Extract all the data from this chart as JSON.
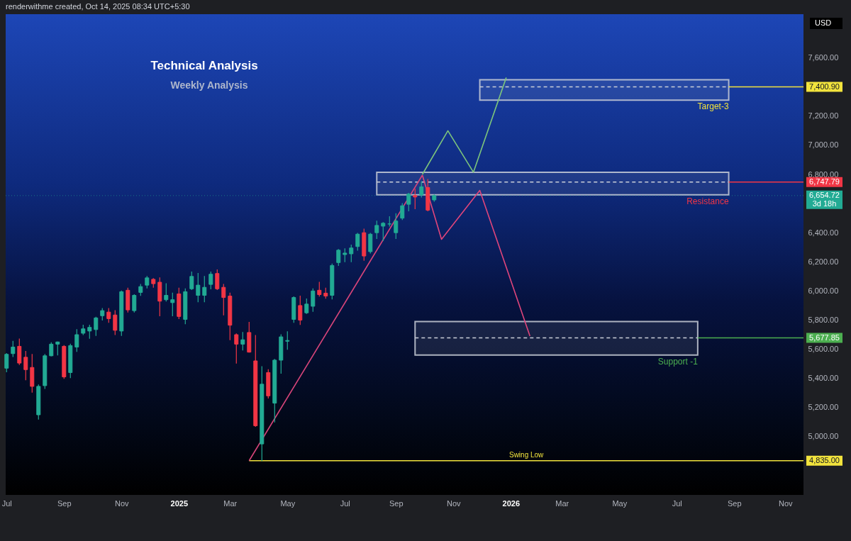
{
  "chart_data": {
    "type": "candlestick",
    "title": "Technical Analysis",
    "subtitle": "Weekly Analysis",
    "annotations": [
      "renderwithme created, Oct 14, 2025 08:34 UTC+5:30",
      "USD"
    ],
    "x": [
      "2024-07-01",
      "2024-07-08",
      "2024-07-15",
      "2024-07-22",
      "2024-07-29",
      "2024-08-05",
      "2024-08-12",
      "2024-08-19",
      "2024-08-26",
      "2024-09-02",
      "2024-09-09",
      "2024-09-16",
      "2024-09-23",
      "2024-09-30",
      "2024-10-07",
      "2024-10-14",
      "2024-10-21",
      "2024-10-28",
      "2024-11-04",
      "2024-11-11",
      "2024-11-18",
      "2024-11-25",
      "2024-12-02",
      "2024-12-09",
      "2024-12-16",
      "2024-12-23",
      "2024-12-30",
      "2025-01-06",
      "2025-01-13",
      "2025-01-20",
      "2025-01-27",
      "2025-02-03",
      "2025-02-10",
      "2025-02-17",
      "2025-02-24",
      "2025-03-03",
      "2025-03-10",
      "2025-03-17",
      "2025-03-24",
      "2025-03-31",
      "2025-04-07",
      "2025-04-14",
      "2025-04-21",
      "2025-04-28",
      "2025-05-05",
      "2025-05-12",
      "2025-05-19",
      "2025-05-26",
      "2025-06-02",
      "2025-06-09",
      "2025-06-16",
      "2025-06-23",
      "2025-06-30",
      "2025-07-07",
      "2025-07-14",
      "2025-07-21",
      "2025-07-28",
      "2025-08-04",
      "2025-08-11",
      "2025-08-18",
      "2025-08-25",
      "2025-09-01",
      "2025-09-08",
      "2025-09-15",
      "2025-09-22",
      "2025-09-29",
      "2025-10-06",
      "2025-10-13"
    ],
    "ohlc": [
      [
        5470,
        5570,
        5445,
        5565
      ],
      [
        5570,
        5655,
        5550,
        5615
      ],
      [
        5620,
        5670,
        5495,
        5505
      ],
      [
        5545,
        5585,
        5390,
        5460
      ],
      [
        5475,
        5565,
        5305,
        5345
      ],
      [
        5150,
        5355,
        5120,
        5345
      ],
      [
        5350,
        5565,
        5330,
        5555
      ],
      [
        5555,
        5645,
        5555,
        5635
      ],
      [
        5635,
        5650,
        5560,
        5650
      ],
      [
        5620,
        5625,
        5400,
        5410
      ],
      [
        5440,
        5635,
        5405,
        5625
      ],
      [
        5615,
        5735,
        5585,
        5700
      ],
      [
        5710,
        5765,
        5700,
        5740
      ],
      [
        5725,
        5765,
        5675,
        5750
      ],
      [
        5735,
        5820,
        5695,
        5815
      ],
      [
        5830,
        5880,
        5800,
        5865
      ],
      [
        5855,
        5880,
        5785,
        5810
      ],
      [
        5835,
        5865,
        5700,
        5730
      ],
      [
        5725,
        6000,
        5695,
        5995
      ],
      [
        6005,
        6020,
        5855,
        5870
      ],
      [
        5865,
        5975,
        5855,
        5970
      ],
      [
        5990,
        6045,
        5970,
        6030
      ],
      [
        6040,
        6100,
        6020,
        6090
      ],
      [
        6080,
        6085,
        6025,
        6050
      ],
      [
        6060,
        6090,
        5830,
        5930
      ],
      [
        5940,
        6050,
        5930,
        5970
      ],
      [
        5920,
        5985,
        5830,
        5940
      ],
      [
        5980,
        6020,
        5810,
        5825
      ],
      [
        5805,
        6015,
        5775,
        5995
      ],
      [
        6015,
        6130,
        6010,
        6100
      ],
      [
        5970,
        6120,
        5925,
        6040
      ],
      [
        5970,
        6100,
        5925,
        6025
      ],
      [
        6045,
        6130,
        6015,
        6115
      ],
      [
        6120,
        6145,
        6010,
        6015
      ],
      [
        6025,
        6045,
        5835,
        5955
      ],
      [
        5965,
        5985,
        5665,
        5765
      ],
      [
        5700,
        5705,
        5505,
        5635
      ],
      [
        5635,
        5715,
        5595,
        5665
      ],
      [
        5715,
        5785,
        5580,
        5580
      ],
      [
        5520,
        5695,
        5070,
        5075
      ],
      [
        4950,
        5480,
        4835,
        5360
      ],
      [
        5440,
        5460,
        5265,
        5280
      ],
      [
        5230,
        5530,
        5100,
        5525
      ],
      [
        5525,
        5700,
        5435,
        5685
      ],
      [
        5655,
        5720,
        5600,
        5660
      ],
      [
        5805,
        5960,
        5785,
        5955
      ],
      [
        5900,
        5965,
        5770,
        5800
      ],
      [
        5850,
        5945,
        5845,
        5910
      ],
      [
        5895,
        6015,
        5860,
        6000
      ],
      [
        6005,
        6060,
        5965,
        5975
      ],
      [
        5985,
        6020,
        5950,
        5965
      ],
      [
        5970,
        6185,
        5945,
        6175
      ],
      [
        6195,
        6285,
        6175,
        6280
      ],
      [
        6250,
        6290,
        6200,
        6260
      ],
      [
        6255,
        6315,
        6200,
        6295
      ],
      [
        6305,
        6395,
        6280,
        6390
      ],
      [
        6400,
        6425,
        6210,
        6240
      ],
      [
        6270,
        6395,
        6260,
        6390
      ],
      [
        6400,
        6480,
        6360,
        6450
      ],
      [
        6445,
        6470,
        6345,
        6465
      ],
      [
        6460,
        6510,
        6445,
        6460
      ],
      [
        6400,
        6530,
        6360,
        6480
      ],
      [
        6500,
        6600,
        6490,
        6585
      ],
      [
        6595,
        6670,
        6550,
        6665
      ],
      [
        6655,
        6700,
        6565,
        6645
      ],
      [
        6660,
        6750,
        6645,
        6715
      ],
      [
        6710,
        6765,
        6550,
        6555
      ],
      [
        6625,
        6660,
        6615,
        6654.72
      ]
    ],
    "colors": [
      "#22ab94",
      "#22ab94",
      "#f23645",
      "#f23645",
      "#f23645",
      "#22ab94",
      "#22ab94",
      "#22ab94",
      "#22ab94",
      "#f23645",
      "#22ab94",
      "#22ab94",
      "#22ab94",
      "#22ab94",
      "#22ab94",
      "#22ab94",
      "#f23645",
      "#f23645",
      "#22ab94",
      "#f23645",
      "#22ab94",
      "#22ab94",
      "#22ab94",
      "#f23645",
      "#f23645",
      "#22ab94",
      "#22ab94",
      "#f23645",
      "#22ab94",
      "#22ab94",
      "#22ab94",
      "#22ab94",
      "#22ab94",
      "#f23645",
      "#f23645",
      "#f23645",
      "#f23645",
      "#22ab94",
      "#f23645",
      "#f23645",
      "#22ab94",
      "#f23645",
      "#22ab94",
      "#22ab94",
      "#22ab94",
      "#22ab94",
      "#f23645",
      "#22ab94",
      "#22ab94",
      "#f23645",
      "#f23645",
      "#22ab94",
      "#22ab94",
      "#22ab94",
      "#22ab94",
      "#22ab94",
      "#f23645",
      "#22ab94",
      "#22ab94",
      "#22ab94",
      "#22ab94",
      "#22ab94",
      "#22ab94",
      "#22ab94",
      "#f23645",
      "#22ab94",
      "#f23645",
      "#22ab94"
    ],
    "series": [
      {
        "type": "line",
        "x": [
          "2025-12-02",
          "2026-09-01"
        ],
        "values": [
          7400.9,
          7400.9
        ],
        "lower": [
          7310,
          7310
        ],
        "upper": [
          7450,
          7450
        ],
        "color": "#c9ced8",
        "line_style": "dashed"
      },
      {
        "type": "line",
        "name": "Target-3",
        "x": [
          "2026-09-01",
          "2026-11-22"
        ],
        "values": [
          7400.9,
          7400.9
        ],
        "color": "#f2e33d",
        "value_labels": [
          null,
          "7,400.90"
        ]
      },
      {
        "type": "line",
        "x": [
          "2025-08-11",
          "2026-09-01"
        ],
        "values": [
          6747.79,
          6747.79
        ],
        "lower": [
          6660,
          6660
        ],
        "upper": [
          6815,
          6815
        ],
        "color": "#c9ced8",
        "line_style": "dashed"
      },
      {
        "type": "line",
        "name": "Resistance",
        "x": [
          "2026-09-01",
          "2026-11-22"
        ],
        "values": [
          6747.79,
          6747.79
        ],
        "color": "#f23645",
        "value_labels": [
          null,
          "6,747.79"
        ]
      },
      {
        "type": "line",
        "x": [
          "2025-09-22",
          "2026-07-29"
        ],
        "values": [
          5677.85,
          5677.85
        ],
        "lower": [
          5560,
          5560
        ],
        "upper": [
          5790,
          5790
        ],
        "color": "#c9ced8",
        "line_style": "dashed"
      },
      {
        "type": "line",
        "name": "Support -1",
        "x": [
          "2026-07-29",
          "2026-11-22"
        ],
        "values": [
          5677.85,
          5677.85
        ],
        "color": "#4caf50",
        "value_labels": [
          null,
          "5,677.85"
        ]
      },
      {
        "type": "line",
        "name": "Swing Low",
        "x": [
          "2025-03-24",
          "2026-11-22"
        ],
        "values": [
          4835,
          4835
        ],
        "color": "#f2e33d",
        "value_labels": [
          null,
          "4,835.00"
        ]
      },
      {
        "type": "line",
        "x": [
          "2025-03-24",
          "2025-09-30"
        ],
        "values": [
          4835,
          6795
        ],
        "color": "#d8457a"
      },
      {
        "type": "line",
        "x": [
          "2025-09-30",
          "2025-10-21",
          "2025-12-02",
          "2026-01-26"
        ],
        "values": [
          6795,
          6355,
          6690,
          5690
        ],
        "color": "#e0457b"
      },
      {
        "type": "line",
        "x": [
          "2025-09-30",
          "2025-10-28",
          "2025-11-25",
          "2025-12-31"
        ],
        "values": [
          6800,
          7100,
          6815,
          7465
        ],
        "color": "#7cc47c"
      }
    ],
    "ref_lines": [
      {
        "axis": "y",
        "value": 6654.72,
        "label": "6,654.72\n3d 18h",
        "color": "#22ab94",
        "line_style": "dotted"
      }
    ],
    "xlim": [
      "2024-06-30",
      "2026-11-22"
    ],
    "xticks": [
      {
        "value": "2024-07-01",
        "label": "Jul"
      },
      {
        "value": "2024-09-02",
        "label": "Sep"
      },
      {
        "value": "2024-11-04",
        "label": "Nov"
      },
      {
        "value": "2025-01-06",
        "label": "2025"
      },
      {
        "value": "2025-03-03",
        "label": "Mar"
      },
      {
        "value": "2025-05-05",
        "label": "May"
      },
      {
        "value": "2025-07-07",
        "label": "Jul"
      },
      {
        "value": "2025-09-01",
        "label": "Sep"
      },
      {
        "value": "2025-11-03",
        "label": "Nov"
      },
      {
        "value": "2026-01-05",
        "label": "2026"
      },
      {
        "value": "2026-03-02",
        "label": "Mar"
      },
      {
        "value": "2026-05-04",
        "label": "May"
      },
      {
        "value": "2026-07-06",
        "label": "Jul"
      },
      {
        "value": "2026-09-07",
        "label": "Sep"
      },
      {
        "value": "2026-11-02",
        "label": "Nov"
      }
    ],
    "ylim": [
      4600,
      7900
    ],
    "yticks": [
      {
        "value": 5000,
        "label": "5,000.00"
      },
      {
        "value": 5200,
        "label": "5,200.00"
      },
      {
        "value": 5400,
        "label": "5,400.00"
      },
      {
        "value": 5600,
        "label": "5,600.00"
      },
      {
        "value": 5800,
        "label": "5,800.00"
      },
      {
        "value": 6000,
        "label": "6,000.00"
      },
      {
        "value": 6200,
        "label": "6,200.00"
      },
      {
        "value": 6400,
        "label": "6,400.00"
      },
      {
        "value": 6800,
        "label": "6,800.00"
      },
      {
        "value": 7000,
        "label": "7,000.00"
      },
      {
        "value": 7200,
        "label": "7,200.00"
      },
      {
        "value": 7600,
        "label": "7,600.00"
      }
    ],
    "grid": false
  }
}
